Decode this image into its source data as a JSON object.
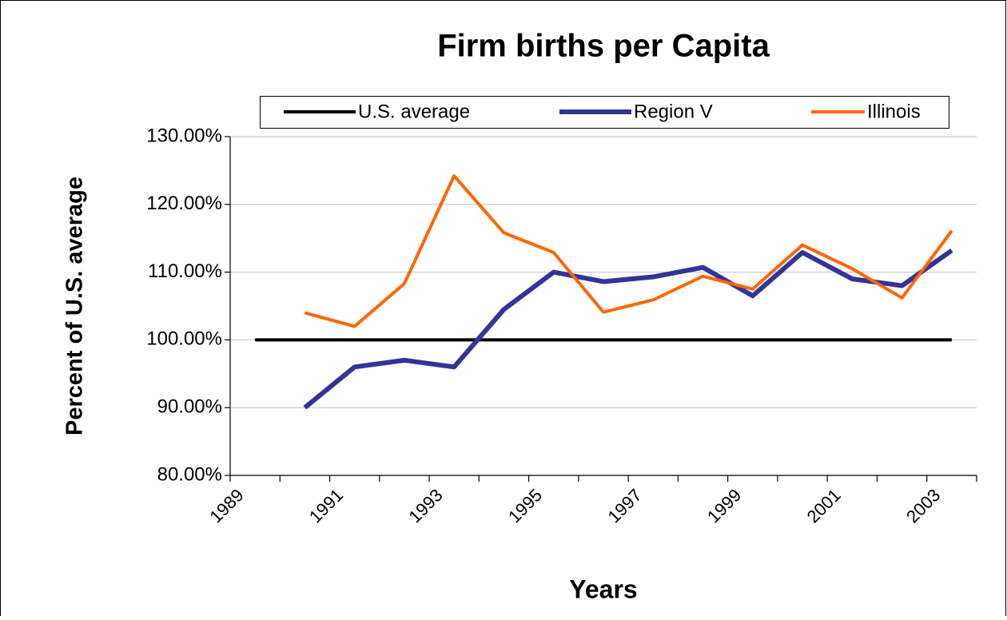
{
  "chart_data": {
    "type": "line",
    "title": "Firm births per Capita",
    "x_label": "Years",
    "y_label": "Percent of U.S. average",
    "categories": [
      "1989",
      null,
      "1991",
      null,
      "1993",
      null,
      "1995",
      null,
      "1997",
      null,
      "1999",
      null,
      "2001",
      null,
      "2003"
    ],
    "series": [
      {
        "name": "U.S. average",
        "color": "#000000",
        "values": [
          100,
          100,
          100,
          100,
          100,
          100,
          100,
          100,
          100,
          100,
          100,
          100,
          100,
          100,
          100
        ]
      },
      {
        "name": "Region V",
        "color": "#333399",
        "values": [
          null,
          90,
          96,
          97,
          96,
          104.5,
          110,
          108.6,
          109.3,
          110.7,
          106.5,
          112.9,
          109,
          108,
          113.2
        ]
      },
      {
        "name": "Illinois",
        "color": "#ff6600",
        "values": [
          null,
          104,
          102,
          108.3,
          124.2,
          115.8,
          112.9,
          104.1,
          105.9,
          109.4,
          107.5,
          114,
          110.5,
          106.2,
          116.1
        ]
      }
    ],
    "ylim": [
      80,
      130
    ],
    "yticks": [
      {
        "value": 80,
        "label": "80.00%"
      },
      {
        "value": 90,
        "label": "90.00%"
      },
      {
        "value": 100,
        "label": "100.00%"
      },
      {
        "value": 110,
        "label": "110.00%"
      },
      {
        "value": 120,
        "label": "120.00%"
      },
      {
        "value": 130,
        "label": "130.00%"
      }
    ],
    "grid": true,
    "legend": "top"
  }
}
